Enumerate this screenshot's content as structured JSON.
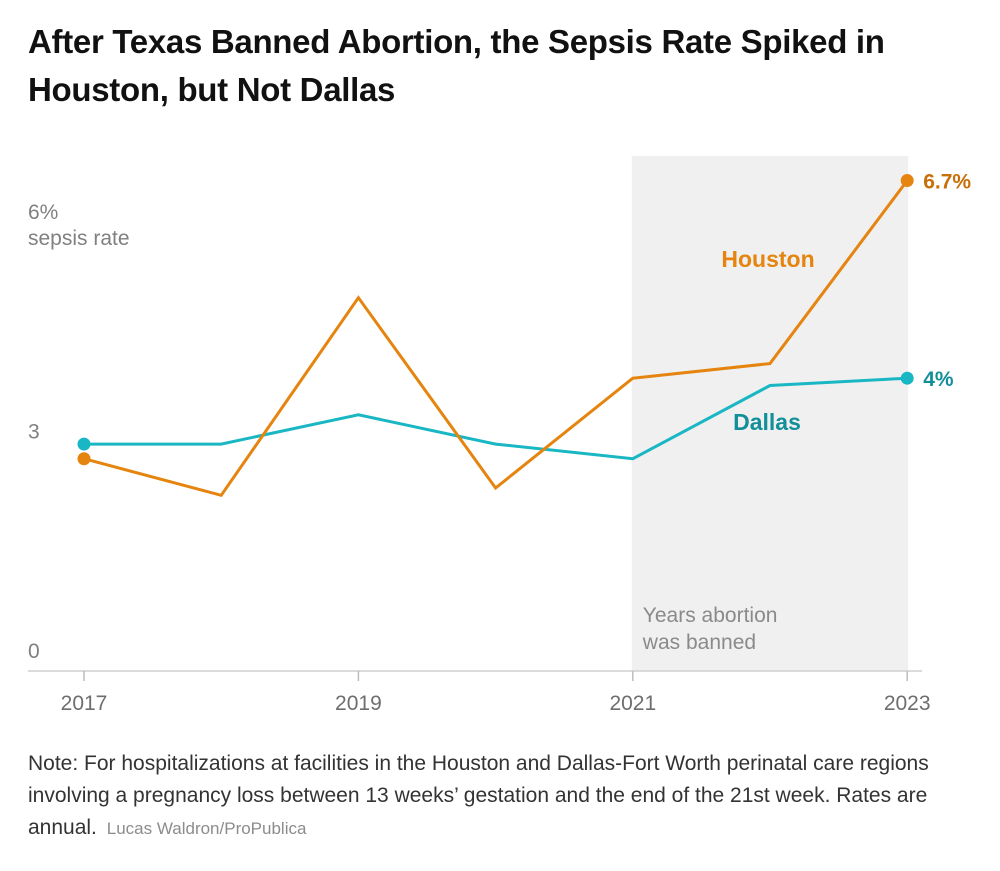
{
  "title": "After Texas Banned Abortion, the Sepsis Rate Spiked in Houston, but Not Dallas",
  "note": "Note: For hospitalizations at facilities in the Houston and Dallas-Fort Worth perinatal care regions involving a pregnancy loss between 13 weeks’ gestation and the end of the 21st week. Rates are annual.",
  "credit": "Lucas Waldron/ProPublica",
  "colors": {
    "houston": "#e5840e",
    "dallas": "#19b7c4",
    "dallas_label": "#138f99",
    "houston_end_label": "#c86f08",
    "shade": "#f0f0f0"
  },
  "chart_data": {
    "type": "line",
    "title": "After Texas Banned Abortion, the Sepsis Rate Spiked in Houston, but Not Dallas",
    "x": [
      2017,
      2018,
      2019,
      2020,
      2021,
      2022,
      2023
    ],
    "xticks": [
      2017,
      2019,
      2021,
      2023
    ],
    "xtick_labels": [
      "2017",
      "2019",
      "2021",
      "2023"
    ],
    "ylim": [
      0,
      7
    ],
    "yticks": [
      0,
      3,
      6
    ],
    "ytick_labels": [
      "0",
      "3",
      "6%"
    ],
    "ylabel": "sepsis rate",
    "series": [
      {
        "name": "Houston",
        "values": [
          2.9,
          2.4,
          5.1,
          2.5,
          4.0,
          4.2,
          6.7
        ],
        "end_label": "6.7%"
      },
      {
        "name": "Dallas",
        "values": [
          3.1,
          3.1,
          3.5,
          3.1,
          2.9,
          3.9,
          4.0
        ],
        "end_label": "4%"
      }
    ],
    "shaded_range": {
      "from": 2021,
      "to": 2023,
      "label_line1": "Years abortion",
      "label_line2": "was banned"
    }
  }
}
